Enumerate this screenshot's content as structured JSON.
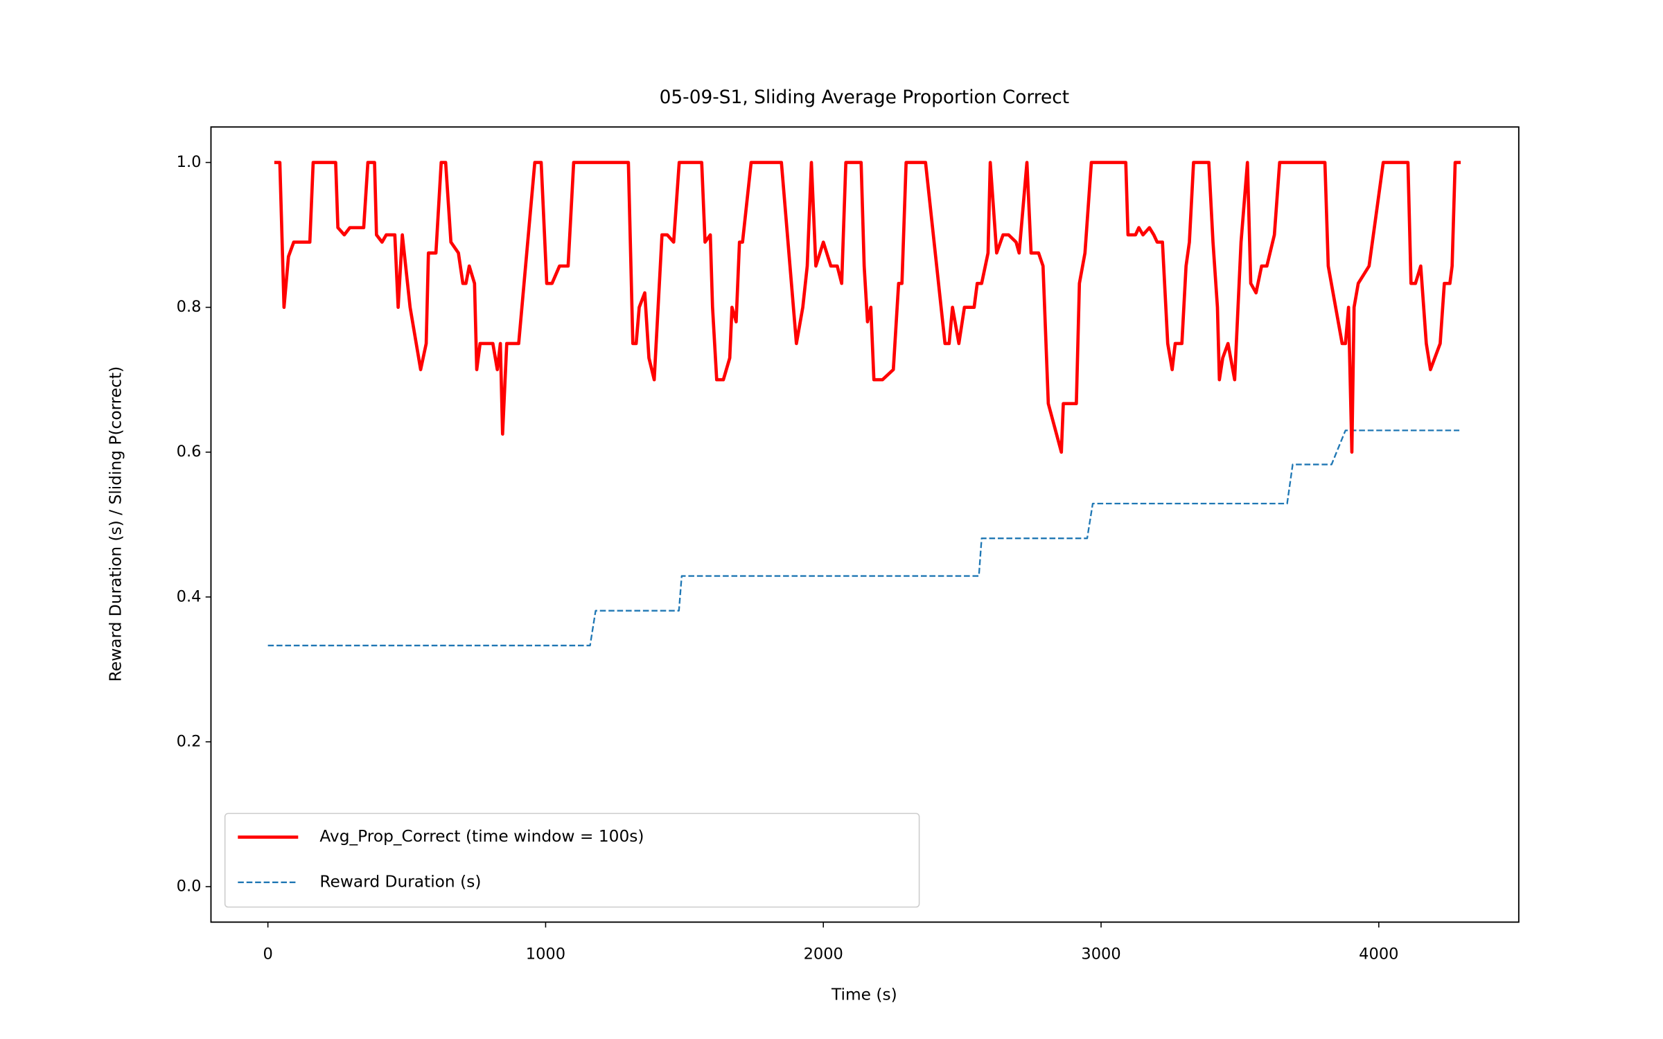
{
  "chart_data": {
    "type": "line",
    "title": "05-09-S1, Sliding Average Proportion Correct",
    "xlabel": "Time (s)",
    "ylabel": "Reward Duration (s) / Sliding P(correct)",
    "xlim": [
      -205,
      4504
    ],
    "ylim": [
      -0.049,
      1.049
    ],
    "xticks": [
      0,
      1000,
      2000,
      3000,
      4000
    ],
    "yticks": [
      {
        "value": 0,
        "label": "0.0"
      },
      0.2,
      0.4,
      0.6,
      0.8,
      {
        "value": 1,
        "label": "1.0"
      }
    ],
    "grid": false,
    "legend": "lower left",
    "series": [
      {
        "name": "Avg_Prop_Correct (time window = 100s)",
        "color": "#ff0000",
        "style": "solid",
        "x": [
          23,
          43,
          58,
          74,
          93,
          151,
          163,
          244,
          252,
          275,
          295,
          345,
          360,
          384,
          391,
          411,
          426,
          457,
          469,
          484,
          512,
          550,
          570,
          578,
          605,
          624,
          640,
          659,
          686,
          702,
          713,
          725,
          744,
          752,
          764,
          810,
          826,
          837,
          845,
          860,
          903,
          961,
          984,
          1004,
          1023,
          1050,
          1081,
          1101,
          1298,
          1314,
          1326,
          1337,
          1357,
          1372,
          1391,
          1419,
          1438,
          1461,
          1481,
          1562,
          1574,
          1593,
          1601,
          1616,
          1640,
          1663,
          1671,
          1686,
          1698,
          1709,
          1740,
          1849,
          1903,
          1926,
          1942,
          1957,
          1973,
          2000,
          2027,
          2050,
          2066,
          2081,
          2136,
          2147,
          2159,
          2171,
          2182,
          2213,
          2252,
          2271,
          2283,
          2298,
          2368,
          2438,
          2453,
          2465,
          2488,
          2508,
          2543,
          2554,
          2570,
          2593,
          2601,
          2624,
          2647,
          2667,
          2694,
          2705,
          2733,
          2748,
          2775,
          2791,
          2810,
          2857,
          2864,
          2911,
          2922,
          2942,
          2965,
          3089,
          3097,
          3124,
          3136,
          3151,
          3174,
          3190,
          3202,
          3221,
          3240,
          3256,
          3267,
          3291,
          3306,
          3318,
          3333,
          3388,
          3403,
          3419,
          3426,
          3438,
          3457,
          3481,
          3504,
          3527,
          3539,
          3558,
          3578,
          3597,
          3624,
          3643,
          3806,
          3818,
          3868,
          3880,
          3891,
          3903,
          3911,
          3926,
          3965,
          3984,
          4016,
          4105,
          4116,
          4132,
          4151,
          4171,
          4186,
          4221,
          4236,
          4256,
          4264,
          4275,
          4295
        ],
        "values": [
          1.0,
          1.0,
          0.8,
          0.87,
          0.89,
          0.89,
          1.0,
          1.0,
          0.91,
          0.9,
          0.91,
          0.91,
          1.0,
          1.0,
          0.9,
          0.89,
          0.9,
          0.9,
          0.8,
          0.9,
          0.8,
          0.714,
          0.75,
          0.875,
          0.875,
          1.0,
          1.0,
          0.89,
          0.875,
          0.833,
          0.833,
          0.857,
          0.833,
          0.714,
          0.75,
          0.75,
          0.714,
          0.75,
          0.625,
          0.75,
          0.75,
          1.0,
          1.0,
          0.833,
          0.833,
          0.857,
          0.857,
          1.0,
          1.0,
          0.75,
          0.75,
          0.8,
          0.82,
          0.73,
          0.7,
          0.9,
          0.9,
          0.89,
          1.0,
          1.0,
          0.89,
          0.9,
          0.8,
          0.7,
          0.7,
          0.73,
          0.8,
          0.78,
          0.89,
          0.89,
          1.0,
          1.0,
          0.75,
          0.8,
          0.857,
          1.0,
          0.857,
          0.89,
          0.857,
          0.857,
          0.833,
          1.0,
          1.0,
          0.857,
          0.78,
          0.8,
          0.7,
          0.7,
          0.714,
          0.833,
          0.833,
          1.0,
          1.0,
          0.75,
          0.75,
          0.8,
          0.75,
          0.8,
          0.8,
          0.833,
          0.833,
          0.875,
          1.0,
          0.875,
          0.9,
          0.9,
          0.89,
          0.875,
          1.0,
          0.875,
          0.875,
          0.857,
          0.667,
          0.6,
          0.667,
          0.667,
          0.833,
          0.875,
          1.0,
          1.0,
          0.9,
          0.9,
          0.91,
          0.9,
          0.91,
          0.9,
          0.89,
          0.89,
          0.75,
          0.714,
          0.75,
          0.75,
          0.857,
          0.89,
          1.0,
          1.0,
          0.89,
          0.8,
          0.7,
          0.73,
          0.75,
          0.7,
          0.89,
          1.0,
          0.833,
          0.82,
          0.857,
          0.857,
          0.9,
          1.0,
          1.0,
          0.857,
          0.75,
          0.75,
          0.8,
          0.6,
          0.8,
          0.833,
          0.857,
          0.91,
          1.0,
          1.0,
          0.833,
          0.833,
          0.857,
          0.75,
          0.714,
          0.75,
          0.833,
          0.833,
          0.857,
          1.0,
          1.0
        ]
      },
      {
        "name": "Reward Duration (s)",
        "color": "#1f77b4",
        "style": "dashed",
        "x": [
          0,
          1160,
          1180,
          1480,
          1490,
          2560,
          2570,
          2950,
          2970,
          3670,
          3690,
          3830,
          3880,
          4290
        ],
        "values": [
          0.333,
          0.333,
          0.381,
          0.381,
          0.429,
          0.429,
          0.481,
          0.481,
          0.529,
          0.529,
          0.583,
          0.583,
          0.63,
          0.63
        ]
      }
    ]
  }
}
